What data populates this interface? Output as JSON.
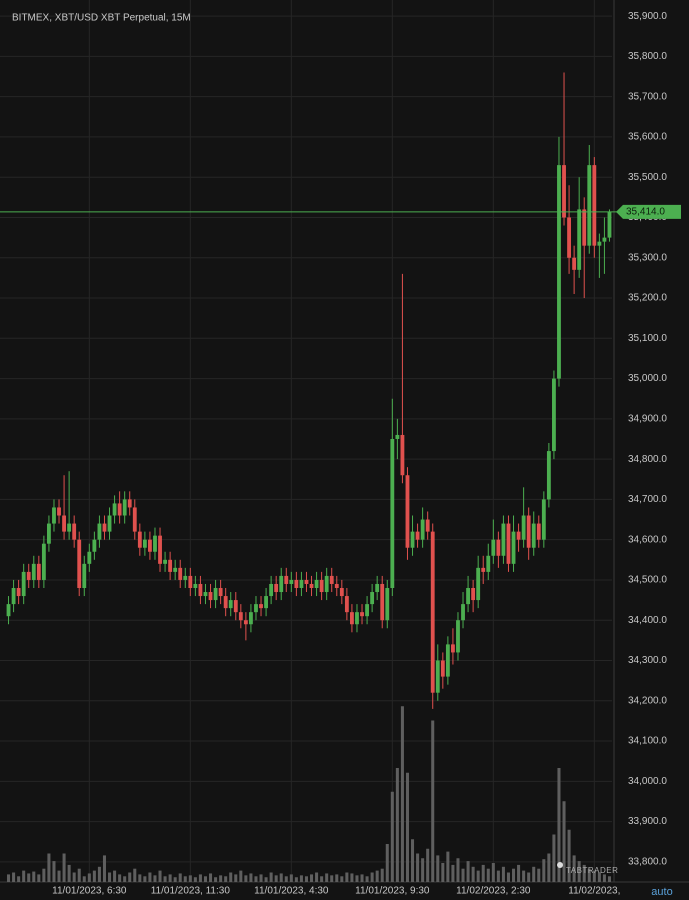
{
  "chart_data": {
    "type": "candlestick",
    "title": "BITMEX, XBT/USD XBT Perpetual, 15M",
    "watermark": "TABTRADER",
    "scale_mode": "auto",
    "up_color": "#4caf50",
    "down_color": "#e0514e",
    "volume_color": "#5f5f5f",
    "grid": true,
    "ylim": [
      33750,
      35940
    ],
    "yticks": [
      {
        "value": 33800,
        "label": "33,800.0"
      },
      {
        "value": 33900,
        "label": "33,900.0"
      },
      {
        "value": 34000,
        "label": "34,000.0"
      },
      {
        "value": 34100,
        "label": "34,100.0"
      },
      {
        "value": 34200,
        "label": "34,200.0"
      },
      {
        "value": 34300,
        "label": "34,300.0"
      },
      {
        "value": 34400,
        "label": "34,400.0"
      },
      {
        "value": 34500,
        "label": "34,500.0"
      },
      {
        "value": 34600,
        "label": "34,600.0"
      },
      {
        "value": 34700,
        "label": "34,700.0"
      },
      {
        "value": 34800,
        "label": "34,800.0"
      },
      {
        "value": 34900,
        "label": "34,900.0"
      },
      {
        "value": 35000,
        "label": "35,000.0"
      },
      {
        "value": 35100,
        "label": "35,100.0"
      },
      {
        "value": 35200,
        "label": "35,200.0"
      },
      {
        "value": 35300,
        "label": "35,300.0"
      },
      {
        "value": 35400,
        "label": "35,400.0"
      },
      {
        "value": 35500,
        "label": "35,500.0"
      },
      {
        "value": 35600,
        "label": "35,600.0"
      },
      {
        "value": 35700,
        "label": "35,700.0"
      },
      {
        "value": 35800,
        "label": "35,800.0"
      },
      {
        "value": 35900,
        "label": "35,900.0"
      }
    ],
    "xlim": [
      -0.5,
      119.5
    ],
    "xticks": [
      {
        "value": 16,
        "label": "11/01/2023, 6:30"
      },
      {
        "value": 36,
        "label": "11/01/2023, 11:30"
      },
      {
        "value": 56,
        "label": "11/01/2023, 4:30"
      },
      {
        "value": 76,
        "label": "11/01/2023, 9:30"
      },
      {
        "value": 96,
        "label": "11/02/2023, 2:30"
      },
      {
        "value": 116,
        "label": "11/02/2023,"
      }
    ],
    "last_price": {
      "value": 35414,
      "label": "35,414.0"
    },
    "open": [
      34410,
      34440,
      34480,
      34460,
      34520,
      34500,
      34540,
      34500,
      34590,
      34640,
      34680,
      34660,
      34620,
      34640,
      34600,
      34480,
      34540,
      34570,
      34600,
      34640,
      34620,
      34660,
      34690,
      34660,
      34700,
      34680,
      34620,
      34580,
      34600,
      34570,
      34610,
      34540,
      34550,
      34520,
      34530,
      34500,
      34510,
      34480,
      34490,
      34460,
      34470,
      34450,
      34480,
      34460,
      34430,
      34450,
      34420,
      34400,
      34390,
      34420,
      34440,
      34430,
      34460,
      34490,
      34470,
      34510,
      34490,
      34500,
      34480,
      34500,
      34490,
      34480,
      34500,
      34470,
      34510,
      34490,
      34480,
      34460,
      34420,
      34390,
      34420,
      34410,
      34440,
      34470,
      34490,
      34400,
      34480,
      34850,
      34860,
      34760,
      34580,
      34620,
      34600,
      34650,
      34620,
      34220,
      34300,
      34260,
      34340,
      34320,
      34400,
      34440,
      34480,
      34450,
      34530,
      34520,
      34560,
      34600,
      34560,
      34640,
      34540,
      34620,
      34600,
      34660,
      34580,
      34640,
      34600,
      34700,
      34820,
      35000,
      35530,
      35400,
      35300,
      35270,
      35420,
      35330,
      35530,
      35330,
      35340,
      35350
    ],
    "high": [
      34460,
      34500,
      34500,
      34540,
      34540,
      34560,
      34560,
      34610,
      34660,
      34700,
      34700,
      34760,
      34770,
      34660,
      34620,
      34560,
      34590,
      34620,
      34660,
      34660,
      34680,
      34710,
      34720,
      34720,
      34720,
      34700,
      34640,
      34620,
      34620,
      34630,
      34630,
      34570,
      34570,
      34550,
      34550,
      34530,
      34530,
      34510,
      34510,
      34490,
      34490,
      34500,
      34500,
      34480,
      34470,
      34470,
      34440,
      34420,
      34440,
      34460,
      34460,
      34480,
      34510,
      34510,
      34530,
      34530,
      34520,
      34520,
      34520,
      34520,
      34510,
      34520,
      34520,
      34530,
      34530,
      34510,
      34500,
      34480,
      34440,
      34440,
      34440,
      34460,
      34490,
      34510,
      34510,
      34500,
      34950,
      34900,
      35260,
      34780,
      34660,
      34640,
      34680,
      34670,
      34640,
      34340,
      34320,
      34360,
      34380,
      34420,
      34470,
      34510,
      34500,
      34560,
      34560,
      34590,
      34650,
      34620,
      34660,
      34660,
      34660,
      34640,
      34730,
      34680,
      34670,
      34660,
      34720,
      34840,
      35020,
      35600,
      35760,
      35480,
      35330,
      35500,
      35450,
      35580,
      35550,
      35360,
      35400,
      35420
    ],
    "low": [
      34390,
      34420,
      34440,
      34440,
      34480,
      34480,
      34480,
      34480,
      34570,
      34620,
      34640,
      34600,
      34600,
      34580,
      34460,
      34460,
      34520,
      34550,
      34580,
      34600,
      34600,
      34640,
      34640,
      34640,
      34660,
      34600,
      34560,
      34560,
      34550,
      34550,
      34520,
      34520,
      34500,
      34500,
      34480,
      34480,
      34460,
      34460,
      34440,
      34440,
      34430,
      34430,
      34440,
      34410,
      34410,
      34400,
      34380,
      34350,
      34370,
      34400,
      34410,
      34410,
      34440,
      34450,
      34450,
      34470,
      34470,
      34460,
      34460,
      34470,
      34460,
      34460,
      34450,
      34450,
      34470,
      34460,
      34440,
      34400,
      34370,
      34370,
      34390,
      34390,
      34420,
      34450,
      34380,
      34380,
      34460,
      34800,
      34740,
      34550,
      34560,
      34580,
      34580,
      34600,
      34180,
      34200,
      34230,
      34240,
      34290,
      34300,
      34380,
      34420,
      34420,
      34430,
      34490,
      34500,
      34540,
      34530,
      34540,
      34520,
      34520,
      34570,
      34580,
      34550,
      34560,
      34580,
      34580,
      34680,
      34800,
      34980,
      35380,
      35260,
      35210,
      35250,
      35200,
      35310,
      35300,
      35250,
      35260,
      35340
    ],
    "close": [
      34440,
      34480,
      34460,
      34520,
      34500,
      34540,
      34500,
      34590,
      34640,
      34680,
      34660,
      34620,
      34640,
      34600,
      34480,
      34540,
      34570,
      34600,
      34640,
      34620,
      34660,
      34690,
      34660,
      34700,
      34680,
      34620,
      34580,
      34600,
      34570,
      34610,
      34540,
      34550,
      34520,
      34530,
      34500,
      34510,
      34480,
      34490,
      34460,
      34470,
      34450,
      34480,
      34460,
      34430,
      34450,
      34420,
      34400,
      34390,
      34420,
      34440,
      34430,
      34460,
      34490,
      34470,
      34510,
      34490,
      34500,
      34480,
      34500,
      34490,
      34480,
      34500,
      34470,
      34510,
      34490,
      34480,
      34460,
      34420,
      34390,
      34420,
      34410,
      34440,
      34470,
      34490,
      34400,
      34480,
      34850,
      34860,
      34760,
      34580,
      34620,
      34600,
      34650,
      34620,
      34220,
      34300,
      34260,
      34340,
      34320,
      34400,
      34440,
      34480,
      34450,
      34530,
      34520,
      34560,
      34600,
      34560,
      34640,
      34540,
      34620,
      34600,
      34660,
      34580,
      34640,
      34600,
      34700,
      34820,
      35000,
      35530,
      35400,
      35300,
      35270,
      35420,
      35330,
      35530,
      35330,
      35340,
      35350,
      35414
    ],
    "volume_lim": [
      0,
      200
    ],
    "volume": [
      8,
      10,
      6,
      12,
      9,
      11,
      8,
      14,
      30,
      22,
      12,
      30,
      18,
      10,
      14,
      6,
      9,
      12,
      16,
      28,
      10,
      12,
      8,
      6,
      10,
      14,
      8,
      6,
      10,
      7,
      12,
      6,
      8,
      5,
      9,
      6,
      7,
      5,
      8,
      6,
      9,
      5,
      7,
      6,
      10,
      8,
      12,
      7,
      9,
      6,
      8,
      5,
      10,
      7,
      9,
      6,
      8,
      5,
      7,
      6,
      8,
      10,
      6,
      9,
      7,
      8,
      6,
      10,
      9,
      7,
      8,
      6,
      10,
      12,
      14,
      40,
      95,
      120,
      185,
      115,
      45,
      30,
      25,
      35,
      170,
      28,
      20,
      32,
      18,
      25,
      14,
      22,
      16,
      12,
      18,
      14,
      20,
      12,
      16,
      10,
      14,
      18,
      12,
      10,
      16,
      14,
      24,
      30,
      50,
      120,
      85,
      55,
      28,
      22,
      18,
      14,
      12,
      10,
      8,
      6
    ]
  }
}
